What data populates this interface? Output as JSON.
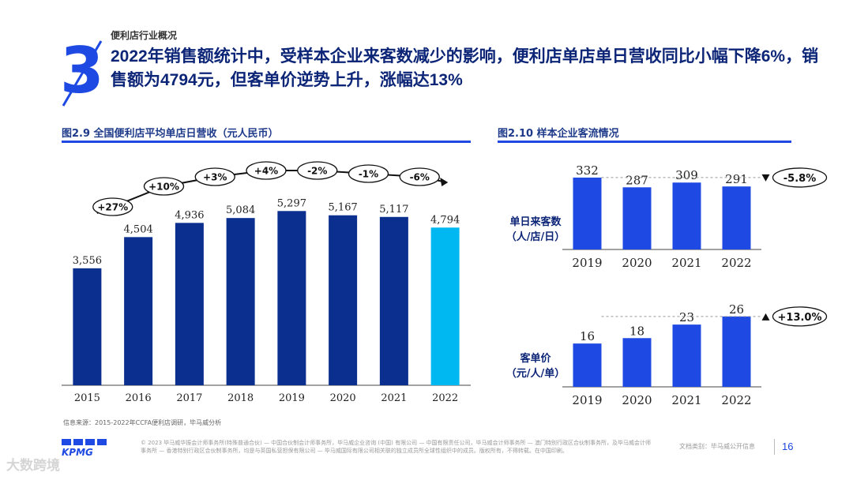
{
  "header": {
    "section_number": "3",
    "section_label": "便利店行业概况",
    "headline": "2022年销售额统计中，受样本企业来客数减少的影响，便利店单店单日营收同比小幅下降6%，销售额为4794元，但客单价逆势上升，涨幅达13%"
  },
  "colors": {
    "brand_blue": "#1e49e2",
    "dark_navy": "#0b2f8f",
    "cyan_highlight": "#00b8f1",
    "title_navy": "#0c2577"
  },
  "chart_data": [
    {
      "id": "fig29",
      "type": "bar",
      "title": "图2.9 全国便利店平均单店日营收（元人民币）",
      "categories": [
        "2015",
        "2016",
        "2017",
        "2018",
        "2019",
        "2020",
        "2021",
        "2022"
      ],
      "values": [
        3556,
        4504,
        4936,
        5084,
        5297,
        5167,
        5117,
        4794
      ],
      "value_labels": [
        "3,556",
        "4,504",
        "4,936",
        "5,084",
        "5,297",
        "5,167",
        "5,117",
        "4,794"
      ],
      "highlight_index": 7,
      "ylim": [
        0,
        6000
      ],
      "growth_labels": [
        "+27%",
        "+10%",
        "+3%",
        "+4%",
        "-2%",
        "-1%",
        "-6%"
      ],
      "grid": false
    },
    {
      "id": "fig210a",
      "type": "bar",
      "title": "图2.10 样本企业客流情况",
      "row_label": [
        "单日来客数",
        "（人/店/日）"
      ],
      "categories": [
        "2019",
        "2020",
        "2021",
        "2022"
      ],
      "values": [
        332,
        287,
        309,
        291
      ],
      "ylim": [
        0,
        350
      ],
      "change_label": "-5.8%",
      "change_direction": "down"
    },
    {
      "id": "fig210b",
      "type": "bar",
      "row_label": [
        "客单价",
        "（元/人/单）"
      ],
      "categories": [
        "2019",
        "2020",
        "2021",
        "2022"
      ],
      "values": [
        16,
        18,
        23,
        26
      ],
      "ylim": [
        0,
        28
      ],
      "change_label": "+13.0%",
      "change_direction": "up"
    }
  ],
  "footer": {
    "source": "信息来源：2015-2022年CCFA便利店调研，毕马威分析",
    "logo_text": "KPMG",
    "legal": "© 2023 毕马威华振会计师事务所(特殊普通合伙) — 中国合伙制会计师事务所，毕马威企业咨询 (中国) 有限公司 — 中国有限责任公司，毕马威会计师事务所 — 澳门特别行政区合伙制事务所，及毕马威会计师事务所 — 香港特别行政区合伙制事务所，均是与英国私营担保有限公司 — 毕马威国际有限公司相关联的独立成员所全球性组织中的成员。版权所有，不得转载。在中国印刷。",
    "doc_class": "文档类别：毕马威公开信息",
    "page_number": "16",
    "watermark": "大数跨境"
  }
}
